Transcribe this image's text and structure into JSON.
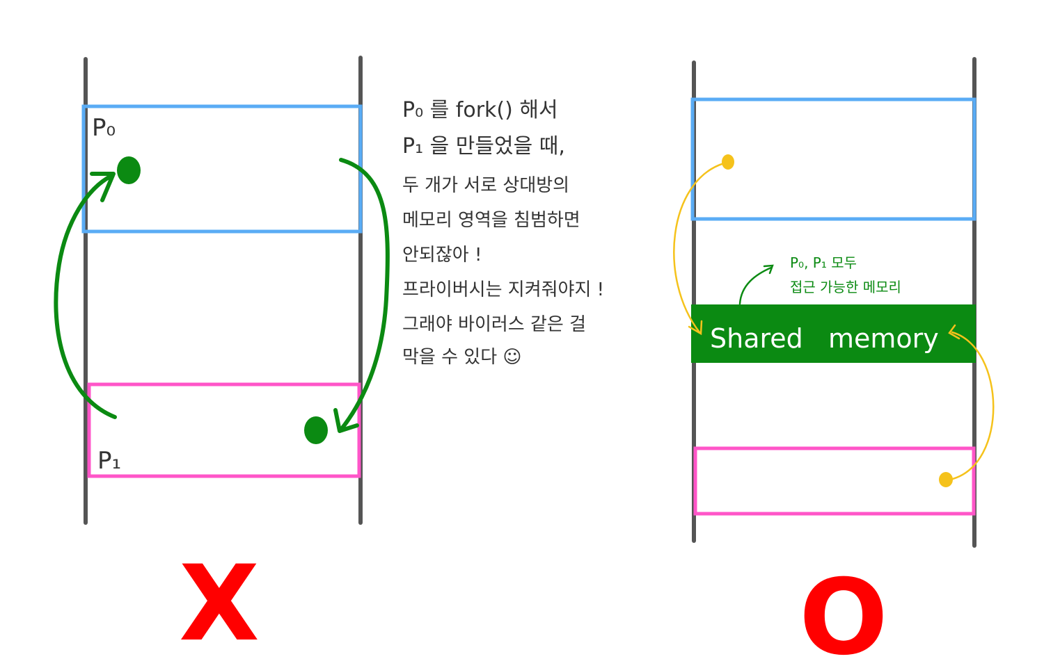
{
  "left_panel": {
    "p0_label": "P₀",
    "p1_label": "P₁",
    "verdict": "X"
  },
  "note": {
    "lines": [
      "P₀ 를  fork() 해서",
      "P₁ 을 만들었을 때,",
      "두 개가 서로 상대방의",
      "메모리 영역을  침범하면",
      "안되잖아 !",
      "프라이버시는 지켜줘야지 !",
      "그래야 바이러스 같은 걸",
      "막을 수 있다  ☺"
    ]
  },
  "right_panel": {
    "shared_label": "Shared   memory",
    "annotation_line1": "P₀, P₁ 모두",
    "annotation_line2": "접근 가능한 메모리",
    "verdict": "O"
  },
  "colors": {
    "line": "#555555",
    "blue": "#5aacf5",
    "pink": "#ff55c8",
    "green": "#0b8a12",
    "yellow": "#f5c21b",
    "red": "#ff0000"
  }
}
